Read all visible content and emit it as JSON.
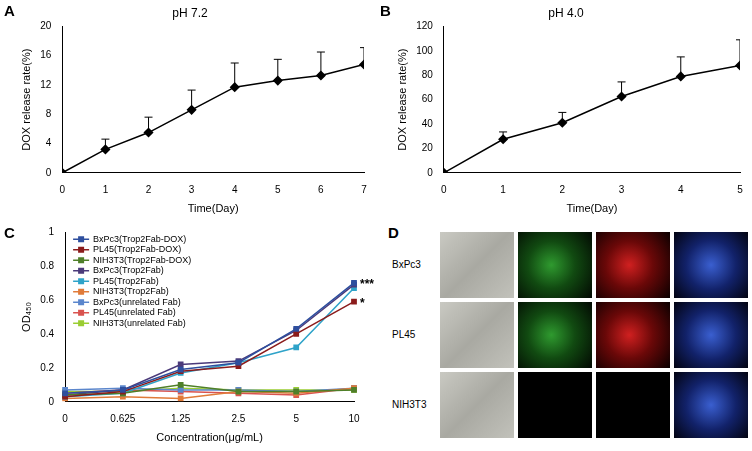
{
  "chart_data": [
    {
      "panel_label": "A",
      "type": "line",
      "title": "pH 7.2",
      "x_label": "Time(Day)",
      "y_label": "DOX release rate(%)",
      "x": [
        0,
        1,
        2,
        3,
        4,
        5,
        6,
        7
      ],
      "values": [
        0,
        3.2,
        5.5,
        8.6,
        11.7,
        12.6,
        13.3,
        14.8
      ],
      "errors": [
        0,
        1.4,
        2.1,
        2.7,
        3.3,
        2.9,
        3.2,
        2.3
      ],
      "color": "#000000",
      "marker": "diamond",
      "line_style": "solid",
      "xlim": [
        0,
        7
      ],
      "xticks": [
        0,
        1,
        2,
        3,
        4,
        5,
        6,
        7
      ],
      "ylim": [
        0,
        20
      ],
      "yticks": [
        0,
        4,
        8,
        12,
        16,
        20
      ],
      "grid": false
    },
    {
      "panel_label": "B",
      "type": "line",
      "title": "pH 4.0",
      "x_label": "Time(Day)",
      "y_label": "DOX release rate(%)",
      "x": [
        0,
        1,
        2,
        3,
        4,
        5
      ],
      "values": [
        0,
        27.5,
        41,
        62.5,
        79,
        88
      ],
      "errors": [
        0,
        6,
        8.5,
        12,
        16,
        21
      ],
      "color": "#000000",
      "marker": "diamond",
      "line_style": "solid",
      "xlim": [
        0,
        5
      ],
      "xticks": [
        0,
        1,
        2,
        3,
        4,
        5
      ],
      "ylim": [
        0,
        120
      ],
      "yticks": [
        0,
        20,
        40,
        60,
        80,
        100,
        120
      ],
      "grid": false
    },
    {
      "panel_label": "C",
      "type": "line",
      "x_label": "Concentration(μg/mL)",
      "y_label": "OD₄₅₀",
      "categories": [
        "0",
        "0.625",
        "1.25",
        "2.5",
        "5",
        "10"
      ],
      "series": [
        {
          "name": "BxPc3(Trop2Fab-DOX)",
          "color": "#2e4f9e",
          "marker": "square",
          "values": [
            0.05,
            0.07,
            0.19,
            0.23,
            0.43,
            0.7
          ]
        },
        {
          "name": "PL45(Trop2Fab-DOX)",
          "color": "#8b1c1c",
          "marker": "square",
          "values": [
            0.03,
            0.06,
            0.18,
            0.21,
            0.4,
            0.59
          ]
        },
        {
          "name": "NIH3T3(Trop2Fab-DOX)",
          "color": "#4f7f2a",
          "marker": "square",
          "values": [
            0.04,
            0.05,
            0.1,
            0.06,
            0.06,
            0.07
          ]
        },
        {
          "name": "BxPc3(Trop2Fab)",
          "color": "#4b3a7a",
          "marker": "square",
          "values": [
            0.04,
            0.07,
            0.22,
            0.24,
            0.42,
            0.69
          ]
        },
        {
          "name": "PL45(Trop2Fab)",
          "color": "#2fa3c9",
          "marker": "square",
          "values": [
            0.03,
            0.05,
            0.17,
            0.23,
            0.32,
            0.67
          ]
        },
        {
          "name": "NIH3T3(Trop2Fab)",
          "color": "#e07b39",
          "marker": "square",
          "values": [
            0.02,
            0.03,
            0.02,
            0.06,
            0.05,
            0.08
          ]
        },
        {
          "name": "BxPc3(unrelated Fab)",
          "color": "#5b86cc",
          "marker": "square",
          "values": [
            0.07,
            0.08,
            0.07,
            0.07,
            0.06,
            0.08
          ]
        },
        {
          "name": "PL45(unrelated Fab)",
          "color": "#d9534f",
          "marker": "square",
          "values": [
            0.05,
            0.07,
            0.06,
            0.05,
            0.04,
            0.08
          ]
        },
        {
          "name": "NIH3T3(unrelated Fab)",
          "color": "#9acd32",
          "marker": "square",
          "values": [
            0.06,
            0.06,
            0.08,
            0.07,
            0.07,
            0.07
          ]
        }
      ],
      "annotations": [
        {
          "text": "***",
          "series": "BxPc3(Trop2Fab-DOX)"
        },
        {
          "text": "*",
          "series": "PL45(Trop2Fab-DOX)"
        }
      ],
      "ylim": [
        0,
        1
      ],
      "yticks": [
        0,
        0.2,
        0.4,
        0.6,
        0.8,
        1
      ],
      "grid": false,
      "legend": "upper left",
      "line_style": "solid"
    }
  ],
  "image_panel": {
    "panel_label": "D",
    "row_labels": [
      "BxPc3",
      "PL45",
      "NIH3T3"
    ]
  }
}
